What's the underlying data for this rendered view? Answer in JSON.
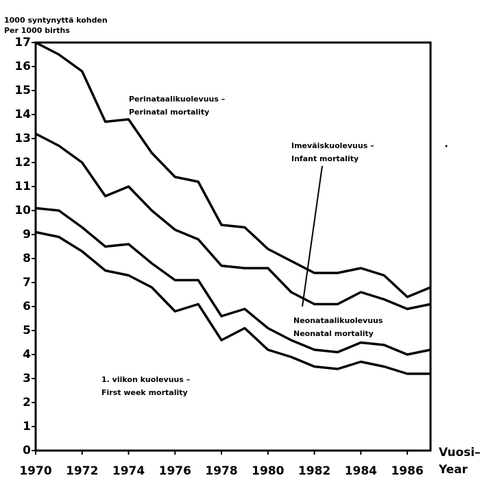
{
  "chart_data": {
    "type": "line",
    "ylabel": [
      "1000 syntynyttä kohden",
      "Per 1000 births"
    ],
    "xlabel": [
      "Vuosi–",
      "Year"
    ],
    "x": [
      1970,
      1971,
      1972,
      1973,
      1974,
      1975,
      1976,
      1977,
      1978,
      1979,
      1980,
      1981,
      1982,
      1983,
      1984,
      1985,
      1986,
      1987
    ],
    "series": [
      {
        "name": "Perinatal mortality",
        "name_fi": "Perinataalikuolevuus –",
        "color": "#000000",
        "values": [
          17.0,
          16.5,
          15.8,
          13.7,
          13.8,
          12.4,
          11.4,
          11.2,
          9.4,
          9.3,
          8.4,
          7.9,
          7.4,
          7.4,
          7.6,
          7.3,
          6.4,
          6.8
        ]
      },
      {
        "name": "Infant mortality",
        "name_fi": "Imeväiskuolevuus –",
        "color": "#000000",
        "values": [
          13.2,
          12.7,
          12.0,
          10.6,
          11.0,
          10.0,
          9.2,
          8.8,
          7.7,
          7.6,
          7.6,
          6.6,
          6.1,
          6.1,
          6.6,
          6.3,
          5.9,
          6.1
        ]
      },
      {
        "name": "Neonatal mortality",
        "name_fi": "Neonataalikuolevuus",
        "color": "#000000",
        "values": [
          10.1,
          10.0,
          9.3,
          8.5,
          8.6,
          7.8,
          7.1,
          7.1,
          5.6,
          5.9,
          5.1,
          4.6,
          4.2,
          4.1,
          4.5,
          4.4,
          4.0,
          4.2
        ]
      },
      {
        "name": "First week mortality",
        "name_fi": "1. viikon kuolevuus –",
        "color": "#000000",
        "values": [
          9.1,
          8.9,
          8.3,
          7.5,
          7.3,
          6.8,
          5.8,
          6.1,
          4.6,
          5.1,
          4.2,
          3.9,
          3.5,
          3.4,
          3.7,
          3.5,
          3.2,
          3.2
        ]
      }
    ],
    "xlim": [
      1970,
      1987
    ],
    "xticks": [
      1970,
      1972,
      1974,
      1976,
      1978,
      1980,
      1982,
      1984,
      1986
    ],
    "ylim": [
      0,
      17
    ],
    "yticks": [
      0,
      1,
      2,
      3,
      4,
      5,
      6,
      7,
      8,
      9,
      10,
      11,
      12,
      13,
      14,
      15,
      16,
      17
    ],
    "grid": false
  }
}
